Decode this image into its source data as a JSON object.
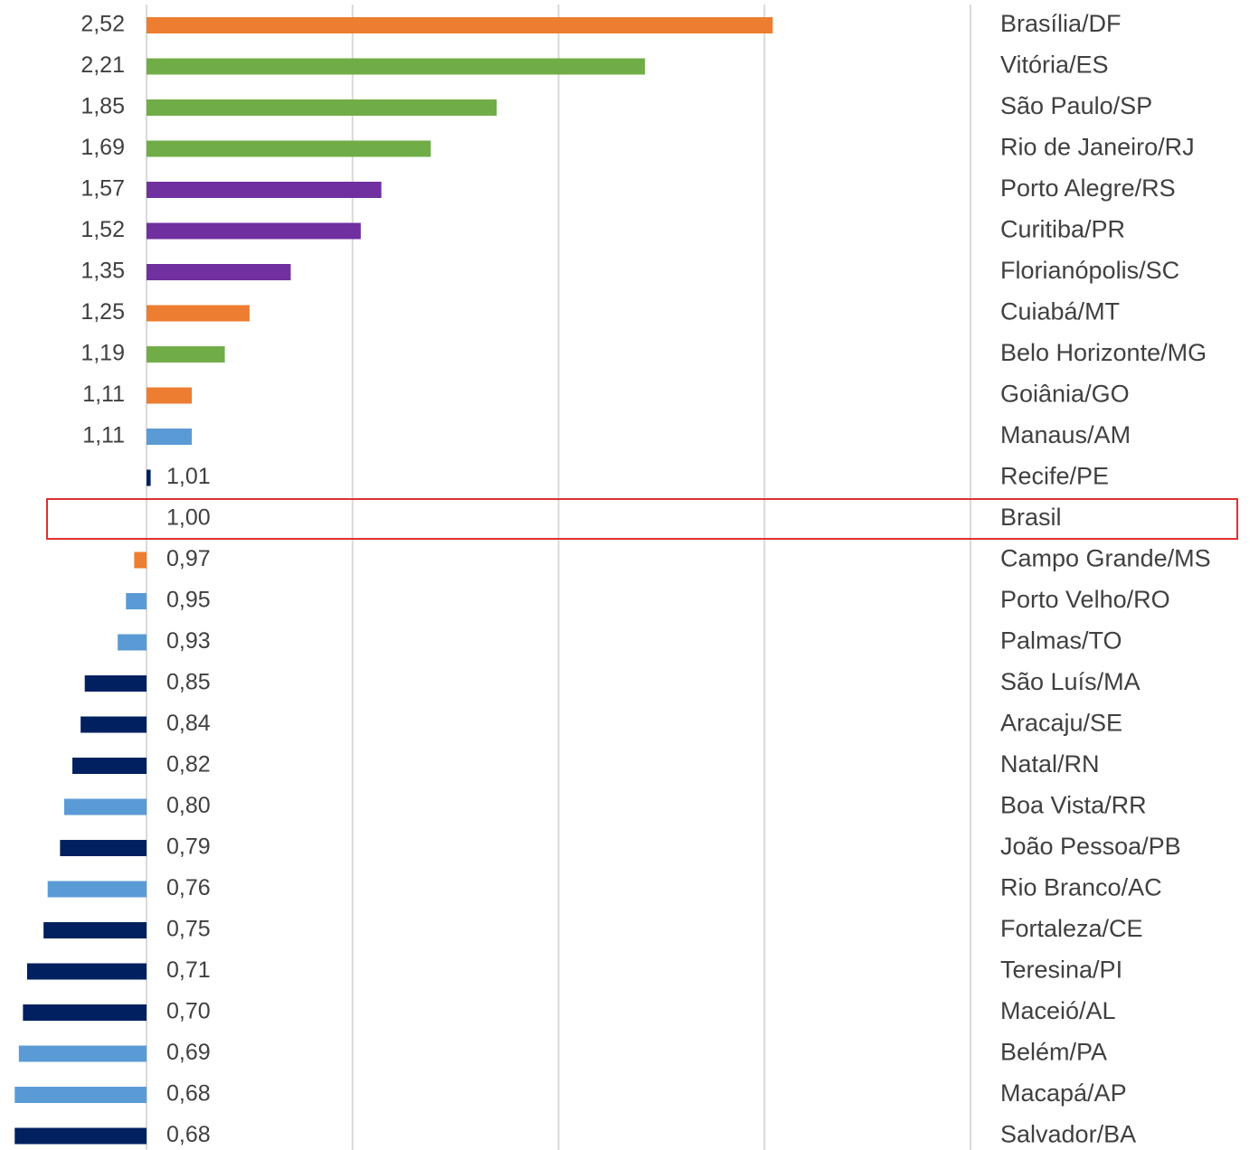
{
  "chart_data": {
    "type": "bar",
    "orientation": "horizontal",
    "base": 1,
    "categories": [
      "Brasília/DF",
      "Vitória/ES",
      "São Paulo/SP",
      "Rio de Janeiro/RJ",
      "Porto Alegre/RS",
      "Curitiba/PR",
      "Florianópolis/SC",
      "Cuiabá/MT",
      "Belo Horizonte/MG",
      "Goiânia/GO",
      "Manaus/AM",
      "Recife/PE",
      "Brasil",
      "Campo Grande/MS",
      "Porto Velho/RO",
      "Palmas/TO",
      "São Luís/MA",
      "Aracaju/SE",
      "Natal/RN",
      "Boa Vista/RR",
      "João Pessoa/PB",
      "Rio Branco/AC",
      "Fortaleza/CE",
      "Teresina/PI",
      "Maceió/AL",
      "Belém/PA",
      "Macapá/AP",
      "Salvador/BA"
    ],
    "values": [
      2.52,
      2.21,
      1.85,
      1.69,
      1.57,
      1.52,
      1.35,
      1.25,
      1.19,
      1.11,
      1.11,
      1.01,
      1.0,
      0.97,
      0.95,
      0.93,
      0.85,
      0.84,
      0.82,
      0.8,
      0.79,
      0.76,
      0.75,
      0.71,
      0.7,
      0.69,
      0.68,
      0.68
    ],
    "value_labels": [
      "2,52",
      "2,21",
      "1,85",
      "1,69",
      "1,57",
      "1,52",
      "1,35",
      "1,25",
      "1,19",
      "1,11",
      "1,11",
      "1,01",
      "1,00",
      "0,97",
      "0,95",
      "0,93",
      "0,85",
      "0,84",
      "0,82",
      "0,80",
      "0,79",
      "0,76",
      "0,75",
      "0,71",
      "0,70",
      "0,69",
      "0,68",
      "0,68"
    ],
    "colors": [
      "#ED7D31",
      "#70AD47",
      "#70AD47",
      "#70AD47",
      "#7030A0",
      "#7030A0",
      "#7030A0",
      "#ED7D31",
      "#70AD47",
      "#ED7D31",
      "#5B9BD5",
      "#002060",
      null,
      "#ED7D31",
      "#5B9BD5",
      "#5B9BD5",
      "#002060",
      "#002060",
      "#002060",
      "#5B9BD5",
      "#002060",
      "#5B9BD5",
      "#002060",
      "#002060",
      "#002060",
      "#5B9BD5",
      "#5B9BD5",
      "#002060"
    ],
    "xlim": [
      0.65,
      3.0
    ],
    "xticks": [
      1,
      1.5,
      2,
      2.5,
      3
    ],
    "grid": true,
    "highlight_index": 12,
    "highlight_color": "#e03030"
  }
}
